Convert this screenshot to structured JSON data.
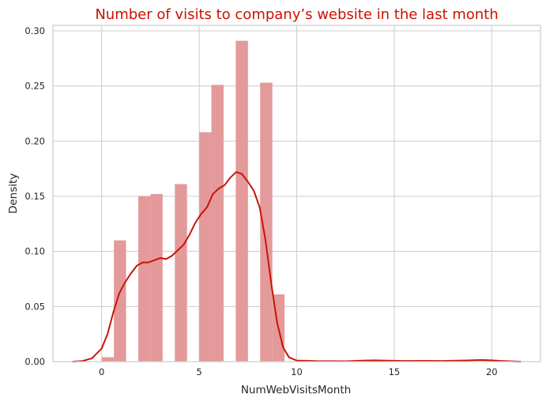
{
  "chart_data": {
    "type": "histogram",
    "title": "Number of visits to company’s website in the last month",
    "xlabel": "NumWebVisitsMonth",
    "ylabel": "Density",
    "xlim": [
      -2.5,
      22.5
    ],
    "ylim": [
      0,
      0.305
    ],
    "x_ticks": [
      0,
      5,
      10,
      15,
      20
    ],
    "x_tick_labels": [
      "0",
      "5",
      "10",
      "15",
      "20"
    ],
    "y_ticks": [
      0.0,
      0.05,
      0.1,
      0.15,
      0.2,
      0.25,
      0.3
    ],
    "y_tick_labels": [
      "0.00",
      "0.05",
      "0.10",
      "0.15",
      "0.20",
      "0.25",
      "0.30"
    ],
    "grid": true,
    "bin_width": 0.625,
    "bins": [
      {
        "x0": 0.0,
        "density": 0.004
      },
      {
        "x0": 0.625,
        "density": 0.11
      },
      {
        "x0": 1.875,
        "density": 0.15
      },
      {
        "x0": 2.5,
        "density": 0.152
      },
      {
        "x0": 3.75,
        "density": 0.161
      },
      {
        "x0": 5.0,
        "density": 0.208
      },
      {
        "x0": 5.625,
        "density": 0.251
      },
      {
        "x0": 6.875,
        "density": 0.291
      },
      {
        "x0": 8.125,
        "density": 0.253
      },
      {
        "x0": 8.75,
        "density": 0.061
      },
      {
        "x0": 10.0,
        "density": 0.001
      },
      {
        "x0": 12.5,
        "density": 0.0005
      },
      {
        "x0": 13.75,
        "density": 0.0005
      },
      {
        "x0": 16.25,
        "density": 0.0005
      },
      {
        "x0": 19.375,
        "density": 0.0005
      }
    ],
    "kde": [
      [
        -1.5,
        0.0
      ],
      [
        -1.0,
        0.0005
      ],
      [
        -0.5,
        0.003
      ],
      [
        0.0,
        0.012
      ],
      [
        0.3,
        0.025
      ],
      [
        0.6,
        0.045
      ],
      [
        0.9,
        0.062
      ],
      [
        1.2,
        0.072
      ],
      [
        1.5,
        0.08
      ],
      [
        1.8,
        0.087
      ],
      [
        2.1,
        0.09
      ],
      [
        2.4,
        0.09
      ],
      [
        2.7,
        0.092
      ],
      [
        3.0,
        0.094
      ],
      [
        3.3,
        0.093
      ],
      [
        3.6,
        0.096
      ],
      [
        3.9,
        0.101
      ],
      [
        4.2,
        0.106
      ],
      [
        4.5,
        0.115
      ],
      [
        4.8,
        0.126
      ],
      [
        5.1,
        0.134
      ],
      [
        5.4,
        0.14
      ],
      [
        5.7,
        0.152
      ],
      [
        6.0,
        0.157
      ],
      [
        6.3,
        0.16
      ],
      [
        6.6,
        0.167
      ],
      [
        6.9,
        0.172
      ],
      [
        7.2,
        0.17
      ],
      [
        7.5,
        0.163
      ],
      [
        7.8,
        0.155
      ],
      [
        8.1,
        0.14
      ],
      [
        8.4,
        0.11
      ],
      [
        8.7,
        0.07
      ],
      [
        9.0,
        0.035
      ],
      [
        9.3,
        0.013
      ],
      [
        9.6,
        0.004
      ],
      [
        10.0,
        0.001
      ],
      [
        11.0,
        0.0005
      ],
      [
        12.5,
        0.0004
      ],
      [
        13.5,
        0.001
      ],
      [
        14.0,
        0.0012
      ],
      [
        14.5,
        0.001
      ],
      [
        15.5,
        0.0006
      ],
      [
        16.5,
        0.0007
      ],
      [
        17.5,
        0.0006
      ],
      [
        18.5,
        0.001
      ],
      [
        19.5,
        0.0015
      ],
      [
        20.0,
        0.0012
      ],
      [
        20.5,
        0.0006
      ],
      [
        21.5,
        0.0
      ]
    ],
    "colors": {
      "bar_fill": "#e49a9a",
      "kde_line": "#c8140a",
      "title": "#cc1100",
      "grid": "#cccccc",
      "frame": "#cccccc",
      "text": "#262626"
    }
  }
}
